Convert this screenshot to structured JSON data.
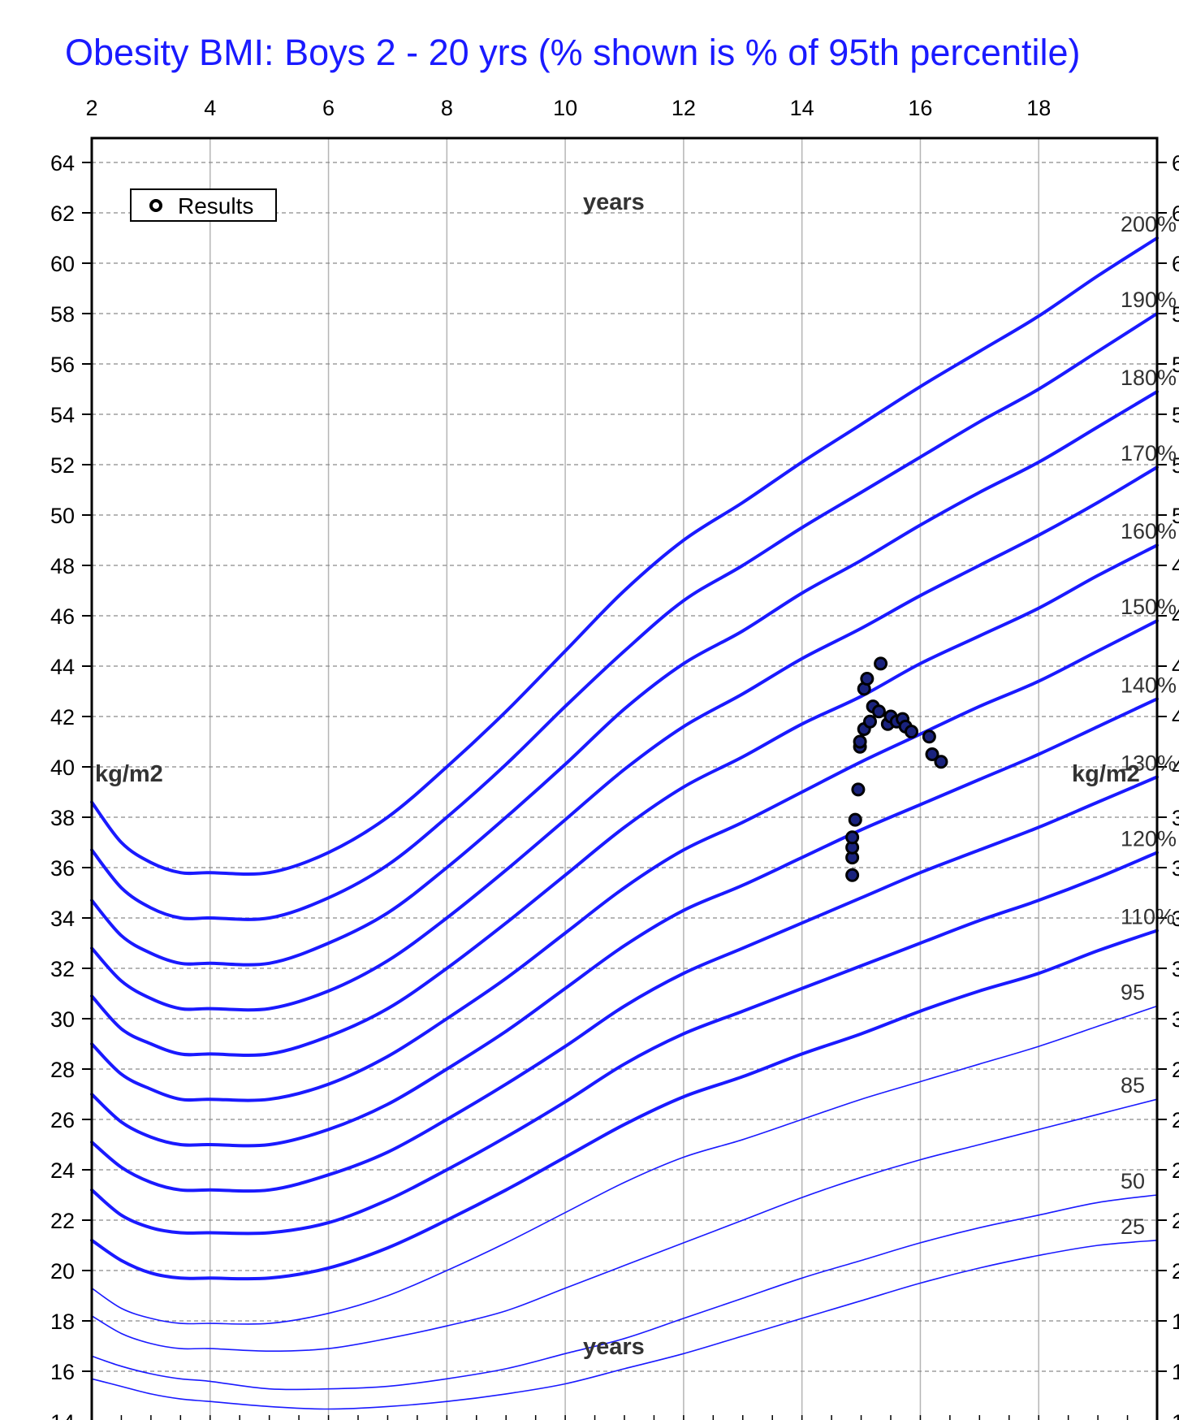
{
  "chart_data": {
    "type": "line",
    "title": "Obesity BMI: Boys 2 - 20 yrs (% shown is % of 95th percentile)",
    "xlabel_top": "years",
    "xlabel_bottom": "years",
    "ylabel_left": "kg/m2",
    "ylabel_right": "kg/m2",
    "xlim": [
      2,
      20
    ],
    "ylim": [
      14,
      64
    ],
    "x_ticks": [
      2,
      4,
      6,
      8,
      10,
      12,
      14,
      16,
      18
    ],
    "y_ticks": [
      14,
      16,
      18,
      20,
      22,
      24,
      26,
      28,
      30,
      32,
      34,
      36,
      38,
      40,
      42,
      44,
      46,
      48,
      50,
      52,
      54,
      56,
      58,
      60,
      62,
      64
    ],
    "grid": true,
    "legend": {
      "position": "top-left",
      "label": "Results"
    },
    "x": [
      2,
      2.5,
      3,
      3.5,
      4,
      5,
      6,
      7,
      8,
      9,
      10,
      11,
      12,
      13,
      14,
      15,
      16,
      17,
      18,
      19,
      20
    ],
    "series": [
      {
        "name": "200%",
        "style": "thick",
        "values": [
          38.6,
          37.0,
          36.2,
          35.8,
          35.8,
          35.8,
          36.6,
          38.0,
          40.0,
          42.2,
          44.6,
          47.0,
          49.0,
          50.5,
          52.1,
          53.6,
          55.1,
          56.5,
          57.9,
          59.5,
          61.0
        ]
      },
      {
        "name": "190%",
        "style": "thick",
        "values": [
          36.7,
          35.2,
          34.4,
          34.0,
          34.0,
          34.0,
          34.8,
          36.1,
          38.0,
          40.1,
          42.4,
          44.6,
          46.6,
          48.0,
          49.5,
          50.9,
          52.3,
          53.7,
          55.0,
          56.5,
          58.0
        ]
      },
      {
        "name": "180%",
        "style": "thick",
        "values": [
          34.7,
          33.3,
          32.6,
          32.2,
          32.2,
          32.2,
          33.0,
          34.2,
          36.0,
          38.0,
          40.1,
          42.3,
          44.1,
          45.4,
          46.9,
          48.2,
          49.6,
          50.9,
          52.1,
          53.5,
          54.9
        ]
      },
      {
        "name": "170%",
        "style": "thick",
        "values": [
          32.8,
          31.5,
          30.8,
          30.4,
          30.4,
          30.4,
          31.1,
          32.3,
          34.0,
          35.9,
          37.9,
          39.9,
          41.6,
          42.9,
          44.3,
          45.5,
          46.8,
          48.0,
          49.2,
          50.5,
          51.9
        ]
      },
      {
        "name": "160%",
        "style": "thick",
        "values": [
          30.9,
          29.6,
          29.0,
          28.6,
          28.6,
          28.6,
          29.3,
          30.4,
          32.0,
          33.8,
          35.7,
          37.6,
          39.2,
          40.4,
          41.7,
          42.8,
          44.1,
          45.2,
          46.3,
          47.6,
          48.8
        ]
      },
      {
        "name": "150%",
        "style": "thick",
        "values": [
          29.0,
          27.8,
          27.2,
          26.8,
          26.8,
          26.8,
          27.4,
          28.5,
          30.0,
          31.6,
          33.4,
          35.2,
          36.7,
          37.8,
          39.0,
          40.2,
          41.3,
          42.4,
          43.4,
          44.6,
          45.8
        ]
      },
      {
        "name": "140%",
        "style": "thick",
        "values": [
          27.0,
          25.9,
          25.3,
          25.0,
          25.0,
          25.0,
          25.6,
          26.6,
          28.0,
          29.5,
          31.2,
          32.9,
          34.3,
          35.3,
          36.4,
          37.5,
          38.5,
          39.5,
          40.5,
          41.6,
          42.7
        ]
      },
      {
        "name": "130%",
        "style": "thick",
        "values": [
          25.1,
          24.1,
          23.5,
          23.2,
          23.2,
          23.2,
          23.8,
          24.7,
          26.0,
          27.4,
          28.9,
          30.5,
          31.8,
          32.8,
          33.8,
          34.8,
          35.8,
          36.7,
          37.6,
          38.6,
          39.6
        ]
      },
      {
        "name": "120%",
        "style": "thick",
        "values": [
          23.2,
          22.2,
          21.7,
          21.5,
          21.5,
          21.5,
          21.9,
          22.8,
          24.0,
          25.3,
          26.7,
          28.2,
          29.4,
          30.3,
          31.2,
          32.1,
          33.0,
          33.9,
          34.7,
          35.6,
          36.6
        ]
      },
      {
        "name": "110%",
        "style": "thick",
        "values": [
          21.2,
          20.4,
          19.9,
          19.7,
          19.7,
          19.7,
          20.1,
          20.9,
          22.0,
          23.2,
          24.5,
          25.8,
          26.9,
          27.7,
          28.6,
          29.4,
          30.3,
          31.1,
          31.8,
          32.7,
          33.5
        ]
      },
      {
        "name": "95",
        "style": "thin",
        "values": [
          19.3,
          18.5,
          18.1,
          17.9,
          17.9,
          17.9,
          18.3,
          19.0,
          20.0,
          21.1,
          22.3,
          23.5,
          24.5,
          25.2,
          26.0,
          26.8,
          27.5,
          28.2,
          28.9,
          29.7,
          30.5
        ]
      },
      {
        "name": "85",
        "style": "thin",
        "values": [
          18.2,
          17.5,
          17.1,
          16.9,
          16.9,
          16.8,
          16.9,
          17.3,
          17.8,
          18.4,
          19.3,
          20.2,
          21.1,
          22.0,
          22.9,
          23.7,
          24.4,
          25.0,
          25.6,
          26.2,
          26.8
        ]
      },
      {
        "name": "50",
        "style": "thin",
        "values": [
          16.6,
          16.2,
          15.9,
          15.7,
          15.6,
          15.3,
          15.3,
          15.4,
          15.7,
          16.1,
          16.7,
          17.3,
          18.1,
          18.9,
          19.7,
          20.4,
          21.1,
          21.7,
          22.2,
          22.7,
          23.0
        ]
      },
      {
        "name": "25",
        "style": "thin",
        "values": [
          15.7,
          15.4,
          15.1,
          14.9,
          14.8,
          14.6,
          14.5,
          14.6,
          14.8,
          15.1,
          15.5,
          16.1,
          16.7,
          17.4,
          18.1,
          18.8,
          19.5,
          20.1,
          20.6,
          21.0,
          21.2
        ]
      }
    ],
    "results": [
      {
        "x": 14.85,
        "y": 35.7
      },
      {
        "x": 14.85,
        "y": 36.4
      },
      {
        "x": 14.85,
        "y": 36.8
      },
      {
        "x": 14.85,
        "y": 37.2
      },
      {
        "x": 14.9,
        "y": 37.9
      },
      {
        "x": 14.95,
        "y": 39.1
      },
      {
        "x": 14.98,
        "y": 40.8
      },
      {
        "x": 14.98,
        "y": 41.0
      },
      {
        "x": 15.05,
        "y": 41.5
      },
      {
        "x": 15.05,
        "y": 43.1
      },
      {
        "x": 15.1,
        "y": 43.5
      },
      {
        "x": 15.15,
        "y": 41.8
      },
      {
        "x": 15.2,
        "y": 42.4
      },
      {
        "x": 15.3,
        "y": 42.2
      },
      {
        "x": 15.33,
        "y": 44.1
      },
      {
        "x": 15.45,
        "y": 41.7
      },
      {
        "x": 15.5,
        "y": 42.0
      },
      {
        "x": 15.6,
        "y": 41.8
      },
      {
        "x": 15.7,
        "y": 41.9
      },
      {
        "x": 15.75,
        "y": 41.6
      },
      {
        "x": 15.85,
        "y": 41.4
      },
      {
        "x": 16.15,
        "y": 41.2
      },
      {
        "x": 16.2,
        "y": 40.5
      },
      {
        "x": 16.35,
        "y": 40.2
      }
    ],
    "colors": {
      "curves": "#1a1aff",
      "title": "#1a1aff",
      "markers_fill": "#1a237e",
      "markers_stroke": "#000000"
    }
  }
}
